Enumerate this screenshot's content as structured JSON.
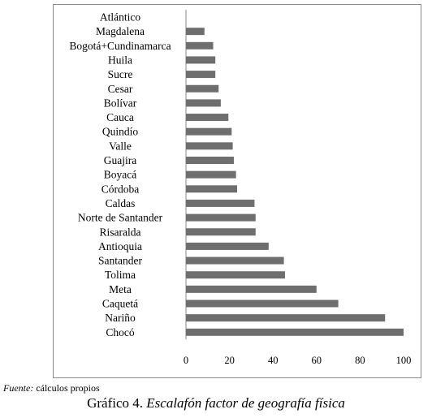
{
  "chart_data": {
    "type": "bar",
    "orientation": "horizontal",
    "categories": [
      "Atlántico",
      "Magdalena",
      "Bogotá+Cundinamarca",
      "Huila",
      "Sucre",
      "Cesar",
      "Bolívar",
      "Cauca",
      "Quindío",
      "Valle",
      "Guajira",
      "Boyacá",
      "Córdoba",
      "Caldas",
      "Norte de Santander",
      "Risaralda",
      "Antioquia",
      "Santander",
      "Tolima",
      "Meta",
      "Caquetá",
      "Nariño",
      "Chocó"
    ],
    "values": [
      0,
      8.5,
      12.5,
      13.5,
      13.5,
      15,
      16,
      19.5,
      21,
      21.5,
      22,
      23,
      23.5,
      31.5,
      32,
      32,
      38,
      45,
      45.5,
      60,
      70,
      91.5,
      100
    ],
    "xlim": [
      0,
      100
    ],
    "xticks": [
      "0",
      "20",
      "40",
      "60",
      "80",
      "100"
    ],
    "bar_color": "#6e6e6e",
    "grid": false,
    "legend": "none"
  },
  "source": {
    "label": "Fuente:",
    "text": "cálculos propios"
  },
  "caption": {
    "prefix": "Gráfico 4.",
    "title": "Escalafón factor de geografía física"
  }
}
